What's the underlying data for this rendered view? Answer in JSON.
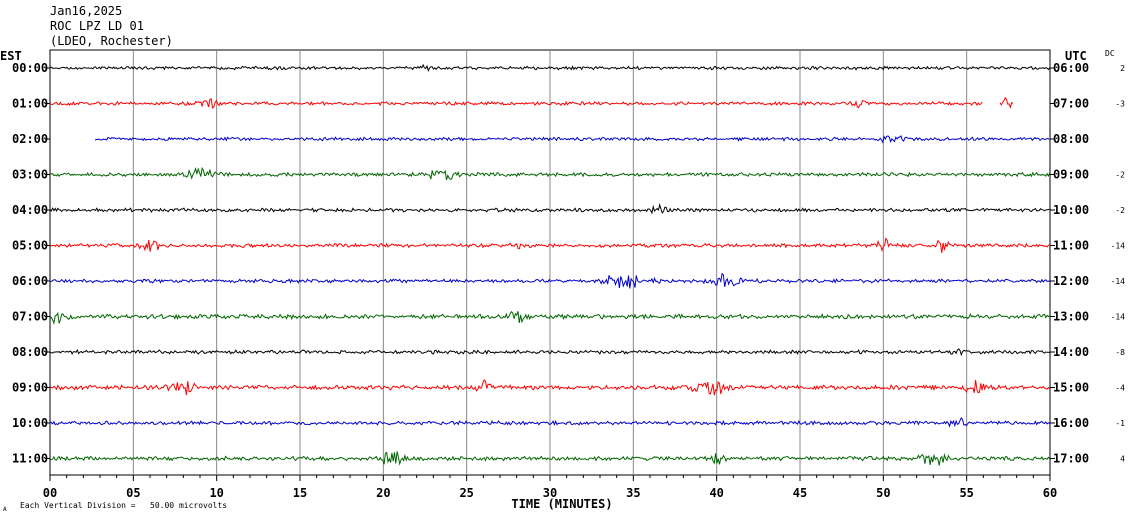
{
  "header": {
    "date": "Jan16,2025",
    "station": "ROC LPZ LD 01",
    "source": "(LDEO, Rochester)"
  },
  "labels": {
    "left_axis": "EST",
    "right_axis": "UTC",
    "dc": "DC",
    "xlabel": "TIME (MINUTES)",
    "scale_note": "Each Vertical Division =   50.00 microvolts",
    "corner_mark": "A"
  },
  "chart_data": {
    "type": "line",
    "title": "",
    "xlabel": "TIME (MINUTES)",
    "ylabel": "",
    "xlim": [
      0,
      60
    ],
    "x_ticks": [
      "00",
      "05",
      "10",
      "15",
      "20",
      "25",
      "30",
      "35",
      "40",
      "45",
      "50",
      "55",
      "60"
    ],
    "grid": true,
    "series_colors": [
      "#000000",
      "#ff0000",
      "#0000cc",
      "#006600"
    ],
    "rows": [
      {
        "est": "00:00",
        "utc": "06:00",
        "dc": "2",
        "color": "#000000",
        "start": 0,
        "end": 60,
        "amp": 0.45,
        "events": [
          [
            22.5,
            0.3,
            1.4
          ]
        ]
      },
      {
        "est": "01:00",
        "utc": "07:00",
        "dc": "-3",
        "color": "#ff0000",
        "start": 0,
        "end": 56,
        "amp": 0.45,
        "events": [
          [
            9.5,
            0.6,
            1.5
          ],
          [
            48.5,
            0.4,
            1.3
          ]
        ],
        "fragment": [
          57.0,
          57.8
        ]
      },
      {
        "est": "02:00",
        "utc": "08:00",
        "dc": "",
        "color": "#0000cc",
        "start": 2.7,
        "end": 60,
        "amp": 0.45,
        "events": [
          [
            50.5,
            0.5,
            1.5
          ]
        ]
      },
      {
        "est": "03:00",
        "utc": "09:00",
        "dc": "-2",
        "color": "#006600",
        "start": 0,
        "end": 60,
        "amp": 0.5,
        "events": [
          [
            9.0,
            0.8,
            1.5
          ],
          [
            23.5,
            0.8,
            1.6
          ]
        ]
      },
      {
        "est": "04:00",
        "utc": "10:00",
        "dc": "-2",
        "color": "#000000",
        "start": 0,
        "end": 60,
        "amp": 0.5,
        "events": [
          [
            36.5,
            0.4,
            1.5
          ]
        ]
      },
      {
        "est": "05:00",
        "utc": "11:00",
        "dc": "-14",
        "color": "#ff0000",
        "start": 0,
        "end": 60,
        "amp": 0.5,
        "events": [
          [
            6.0,
            0.6,
            1.6
          ],
          [
            28.0,
            0.3,
            1.7
          ],
          [
            50.0,
            0.4,
            1.7
          ],
          [
            53.5,
            0.4,
            1.6
          ]
        ]
      },
      {
        "est": "06:00",
        "utc": "12:00",
        "dc": "-14",
        "color": "#0000cc",
        "start": 0,
        "end": 60,
        "amp": 0.5,
        "events": [
          [
            34.5,
            1.2,
            2.4
          ],
          [
            40.5,
            0.8,
            1.9
          ]
        ]
      },
      {
        "est": "07:00",
        "utc": "13:00",
        "dc": "-14",
        "color": "#006600",
        "start": 0,
        "end": 60,
        "amp": 0.6,
        "events": [
          [
            0.5,
            0.5,
            1.6
          ],
          [
            28.0,
            0.5,
            1.7
          ]
        ]
      },
      {
        "est": "08:00",
        "utc": "14:00",
        "dc": "-8",
        "color": "#000000",
        "start": 0,
        "end": 60,
        "amp": 0.5,
        "events": [
          [
            54.5,
            0.3,
            1.6
          ]
        ]
      },
      {
        "est": "09:00",
        "utc": "15:00",
        "dc": "-4",
        "color": "#ff0000",
        "start": 0,
        "end": 60,
        "amp": 0.6,
        "events": [
          [
            8.0,
            0.8,
            1.7
          ],
          [
            26.0,
            0.4,
            1.6
          ],
          [
            39.5,
            0.9,
            2.6
          ],
          [
            55.5,
            0.5,
            1.8
          ]
        ]
      },
      {
        "est": "10:00",
        "utc": "16:00",
        "dc": "-1",
        "color": "#0000cc",
        "start": 0,
        "end": 60,
        "amp": 0.5,
        "events": [
          [
            54.5,
            0.5,
            1.3
          ]
        ]
      },
      {
        "est": "11:00",
        "utc": "17:00",
        "dc": "4",
        "color": "#006600",
        "start": 0,
        "end": 60,
        "amp": 0.55,
        "events": [
          [
            20.5,
            0.6,
            1.8
          ],
          [
            40.0,
            0.4,
            1.6
          ],
          [
            53.0,
            0.8,
            1.7
          ]
        ]
      }
    ]
  }
}
